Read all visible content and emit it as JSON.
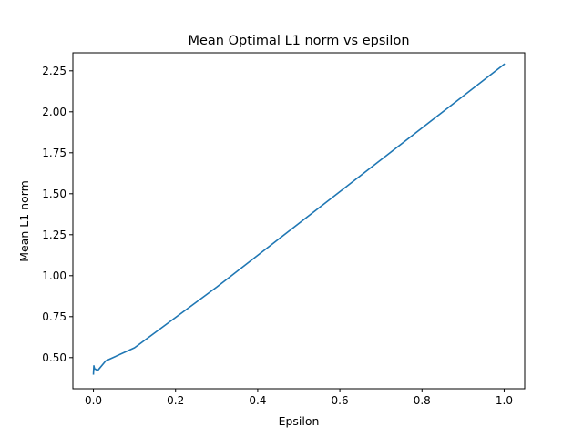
{
  "chart_data": {
    "type": "line",
    "title": "Mean Optimal L1 norm vs epsilon",
    "xlabel": "Epsilon",
    "ylabel": "Mean L1 norm",
    "xlim": [
      -0.05,
      1.05
    ],
    "ylim": [
      0.31,
      2.36
    ],
    "xticks": [
      0.0,
      0.2,
      0.4,
      0.6,
      0.8,
      1.0
    ],
    "xtick_labels": [
      "0.0",
      "0.2",
      "0.4",
      "0.6",
      "0.8",
      "1.0"
    ],
    "yticks": [
      0.5,
      0.75,
      1.0,
      1.25,
      1.5,
      1.75,
      2.0,
      2.25
    ],
    "ytick_labels": [
      "0.50",
      "0.75",
      "1.00",
      "1.25",
      "1.50",
      "1.75",
      "2.00",
      "2.25"
    ],
    "grid": false,
    "line_color": "#1f77b4",
    "series": [
      {
        "x": [
          0.0,
          0.001,
          0.002,
          0.003,
          0.005,
          0.01,
          0.03,
          0.1,
          0.3,
          1.0
        ],
        "y": [
          0.4,
          0.45,
          0.44,
          0.43,
          0.43,
          0.42,
          0.48,
          0.56,
          0.93,
          2.29
        ]
      }
    ]
  }
}
